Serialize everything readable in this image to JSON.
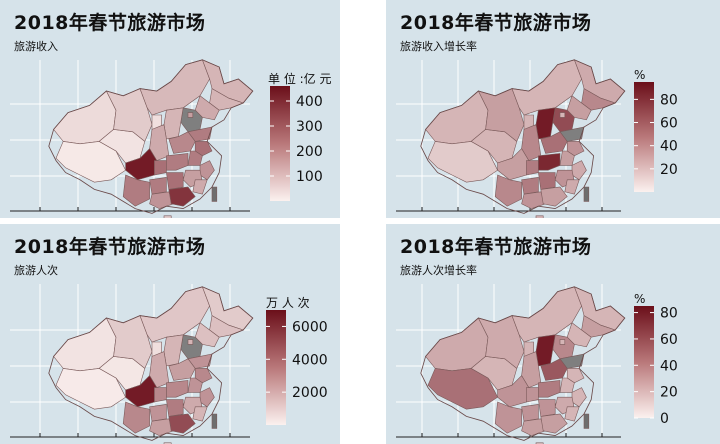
{
  "panels": [
    {
      "id": "p1",
      "title": "2018年春节旅游市场",
      "subtitle": "旅游收入",
      "unit": "单 位 :亿 元",
      "legend": {
        "ticks": [
          "400",
          "300",
          "200",
          "100"
        ],
        "max": 460
      }
    },
    {
      "id": "p2",
      "title": "2018年春节旅游市场",
      "subtitle": "旅游收入增长率",
      "unit": "%",
      "legend": {
        "ticks": [
          "80",
          "60",
          "40",
          "20"
        ],
        "max": 95
      }
    },
    {
      "id": "p3",
      "title": "2018年春节旅游市场",
      "subtitle": "旅游人次",
      "unit": "万 人 次",
      "legend": {
        "ticks": [
          "6000",
          "4000",
          "2000"
        ],
        "max": 7000
      }
    },
    {
      "id": "p4",
      "title": "2018年春节旅游市场",
      "subtitle": "旅游人次增长率",
      "unit": "%",
      "legend": {
        "ticks": [
          "80",
          "60",
          "40",
          "20",
          "0"
        ],
        "max": 85
      }
    }
  ],
  "colors": {
    "panel_bg": "#d6e3ea",
    "low": "#fbf1ef",
    "high": "#6b0f1a",
    "no_data": "#7f7f7f",
    "border": "#5a3a3a"
  }
}
